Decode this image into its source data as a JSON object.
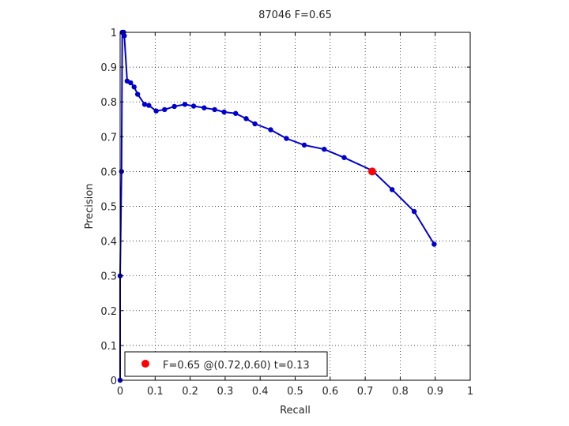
{
  "chart_data": {
    "type": "line",
    "title": "87046 F=0.65",
    "xlabel": "Recall",
    "ylabel": "Precision",
    "xlim": [
      0,
      1
    ],
    "ylim": [
      0,
      1
    ],
    "grid": true,
    "x_ticks": [
      "0",
      "0.1",
      "0.2",
      "0.3",
      "0.4",
      "0.5",
      "0.6",
      "0.7",
      "0.8",
      "0.9",
      "1"
    ],
    "y_ticks": [
      "0",
      "0.1",
      "0.2",
      "0.3",
      "0.4",
      "0.5",
      "0.6",
      "0.7",
      "0.8",
      "0.9",
      "1"
    ],
    "series": [
      {
        "color": "#0000cc",
        "points": [
          [
            0.0,
            0.0
          ],
          [
            0.0,
            0.3
          ],
          [
            0.004,
            0.6
          ],
          [
            0.006,
            1.0
          ],
          [
            0.01,
            1.0
          ],
          [
            0.012,
            0.99
          ],
          [
            0.02,
            0.86
          ],
          [
            0.03,
            0.855
          ],
          [
            0.04,
            0.843
          ],
          [
            0.05,
            0.822
          ],
          [
            0.07,
            0.793
          ],
          [
            0.082,
            0.79
          ],
          [
            0.103,
            0.774
          ],
          [
            0.127,
            0.778
          ],
          [
            0.155,
            0.787
          ],
          [
            0.185,
            0.793
          ],
          [
            0.21,
            0.788
          ],
          [
            0.24,
            0.783
          ],
          [
            0.27,
            0.778
          ],
          [
            0.297,
            0.771
          ],
          [
            0.33,
            0.767
          ],
          [
            0.36,
            0.752
          ],
          [
            0.385,
            0.737
          ],
          [
            0.43,
            0.72
          ],
          [
            0.475,
            0.695
          ],
          [
            0.526,
            0.676
          ],
          [
            0.583,
            0.664
          ],
          [
            0.64,
            0.64
          ],
          [
            0.72,
            0.603
          ],
          [
            0.777,
            0.548
          ],
          [
            0.84,
            0.485
          ],
          [
            0.897,
            0.391
          ]
        ]
      }
    ],
    "highlight": {
      "x": 0.72,
      "y": 0.6,
      "color": "#ff0000"
    },
    "legend": {
      "position": "bottom-left",
      "label": "F=0.65 @(0.72,0.60) t=0.13"
    }
  }
}
